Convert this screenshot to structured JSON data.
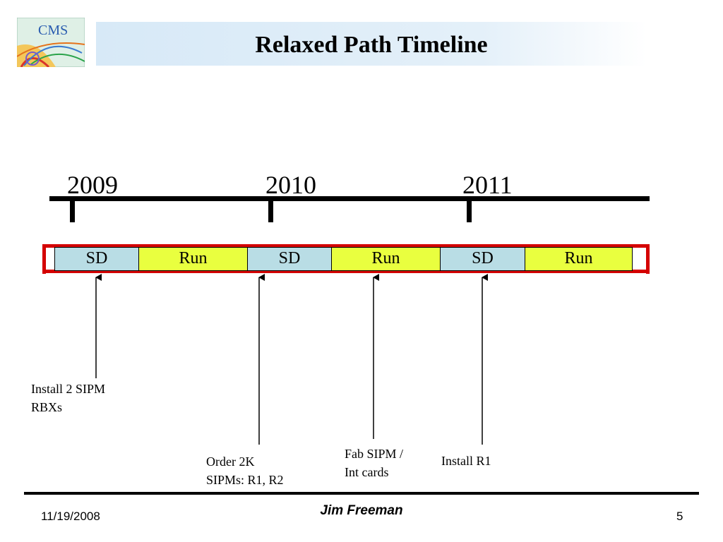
{
  "header": {
    "title": "Relaxed Path Timeline",
    "logo_text": "CMS"
  },
  "timeline": {
    "years": [
      "2009",
      "2010",
      "2011"
    ],
    "phases": [
      {
        "label": "SD",
        "type": "shutdown"
      },
      {
        "label": "Run",
        "type": "run"
      },
      {
        "label": "SD",
        "type": "shutdown"
      },
      {
        "label": "Run",
        "type": "run"
      },
      {
        "label": "SD",
        "type": "shutdown"
      },
      {
        "label": "Run",
        "type": "run"
      }
    ],
    "milestones": [
      {
        "text": "Install 2 SIPM\nRBXs"
      },
      {
        "text": "Order 2K\nSIPMs: R1, R2"
      },
      {
        "text": "Fab SIPM /\nInt cards"
      },
      {
        "text": "Install R1"
      }
    ]
  },
  "colors": {
    "shutdown": "#b9dde5",
    "run": "#e9ff3f",
    "rail": "#d40000",
    "title_band": "#d7e9f7"
  },
  "footer": {
    "date": "11/19/2008",
    "author": "Jim Freeman",
    "page": "5"
  }
}
